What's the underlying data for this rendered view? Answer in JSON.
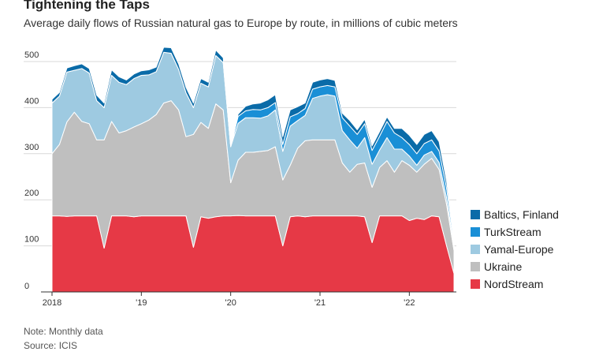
{
  "title": "Tightening the Taps",
  "subtitle": "Average daily flows of Russian natural gas to Europe by route, in millions of cubic meters",
  "notes": {
    "note": "Note: Monthly data",
    "source": "Source: ICIS"
  },
  "chart_data": {
    "type": "area",
    "stacked": true,
    "ylim": [
      0,
      500
    ],
    "yticks": [
      0,
      100,
      200,
      300,
      400,
      500
    ],
    "x_tick_labels": [
      "2018",
      "'19",
      "'20",
      "'21",
      "'22"
    ],
    "x_start": "2018-01",
    "x_end": "2022-07",
    "x": [
      "2018-01",
      "2018-02",
      "2018-03",
      "2018-04",
      "2018-05",
      "2018-06",
      "2018-07",
      "2018-08",
      "2018-09",
      "2018-10",
      "2018-11",
      "2018-12",
      "2019-01",
      "2019-02",
      "2019-03",
      "2019-04",
      "2019-05",
      "2019-06",
      "2019-07",
      "2019-08",
      "2019-09",
      "2019-10",
      "2019-11",
      "2019-12",
      "2020-01",
      "2020-02",
      "2020-03",
      "2020-04",
      "2020-05",
      "2020-06",
      "2020-07",
      "2020-08",
      "2020-09",
      "2020-10",
      "2020-11",
      "2020-12",
      "2021-01",
      "2021-02",
      "2021-03",
      "2021-04",
      "2021-05",
      "2021-06",
      "2021-07",
      "2021-08",
      "2021-09",
      "2021-10",
      "2021-11",
      "2021-12",
      "2022-01",
      "2022-02",
      "2022-03",
      "2022-04",
      "2022-05",
      "2022-06",
      "2022-07"
    ],
    "series": [
      {
        "name": "NordStream",
        "color": "#e63946",
        "values": [
          165,
          165,
          164,
          165,
          165,
          165,
          165,
          95,
          165,
          165,
          165,
          163,
          165,
          165,
          165,
          165,
          165,
          165,
          165,
          97,
          163,
          160,
          163,
          165,
          165,
          166,
          165,
          165,
          165,
          165,
          165,
          100,
          163,
          165,
          163,
          165,
          165,
          165,
          165,
          165,
          165,
          165,
          163,
          107,
          165,
          165,
          165,
          165,
          155,
          160,
          157,
          165,
          163,
          100,
          40
        ]
      },
      {
        "name": "Ukraine",
        "color": "#bfbfbf",
        "values": [
          135,
          155,
          205,
          225,
          205,
          200,
          165,
          235,
          205,
          180,
          185,
          195,
          200,
          208,
          220,
          245,
          250,
          230,
          172,
          245,
          205,
          195,
          245,
          230,
          72,
          120,
          138,
          138,
          140,
          142,
          150,
          143,
          112,
          147,
          165,
          165,
          165,
          165,
          165,
          115,
          95,
          112,
          117,
          120,
          105,
          120,
          95,
          120,
          120,
          100,
          120,
          125,
          103,
          90,
          50
        ]
      },
      {
        "name": "Yamal-Europe",
        "color": "#9ecae1",
        "values": [
          110,
          105,
          108,
          91,
          115,
          110,
          85,
          70,
          100,
          110,
          100,
          105,
          105,
          98,
          93,
          110,
          103,
          88,
          95,
          58,
          85,
          90,
          105,
          103,
          78,
          80,
          75,
          75,
          72,
          75,
          80,
          62,
          85,
          60,
          55,
          90,
          95,
          98,
          95,
          70,
          70,
          35,
          55,
          50,
          38,
          50,
          50,
          25,
          20,
          15,
          20,
          15,
          15,
          15,
          10
        ]
      },
      {
        "name": "TurkStream",
        "color": "#1a8fd6",
        "values": [
          0,
          0,
          0,
          0,
          0,
          0,
          0,
          0,
          0,
          0,
          0,
          0,
          0,
          0,
          0,
          0,
          0,
          0,
          0,
          0,
          0,
          0,
          0,
          0,
          0,
          15,
          15,
          18,
          18,
          18,
          16,
          15,
          20,
          15,
          15,
          20,
          20,
          20,
          20,
          28,
          30,
          30,
          30,
          30,
          30,
          35,
          35,
          25,
          25,
          25,
          25,
          25,
          25,
          20,
          10
        ]
      },
      {
        "name": "Baltics, Finland",
        "color": "#0a6ba8",
        "values": [
          8,
          8,
          9,
          10,
          10,
          10,
          12,
          10,
          12,
          12,
          10,
          10,
          10,
          11,
          10,
          11,
          12,
          12,
          12,
          10,
          10,
          10,
          12,
          10,
          5,
          5,
          10,
          12,
          15,
          17,
          17,
          17,
          15,
          15,
          12,
          15,
          15,
          15,
          14,
          10,
          12,
          10,
          10,
          10,
          10,
          10,
          10,
          20,
          20,
          20,
          20,
          20,
          20,
          15,
          10
        ]
      }
    ],
    "legend_order": [
      "Baltics, Finland",
      "TurkStream",
      "Yamal-Europe",
      "Ukraine",
      "NordStream"
    ],
    "legend_position": "right",
    "grid": "horizontal"
  }
}
